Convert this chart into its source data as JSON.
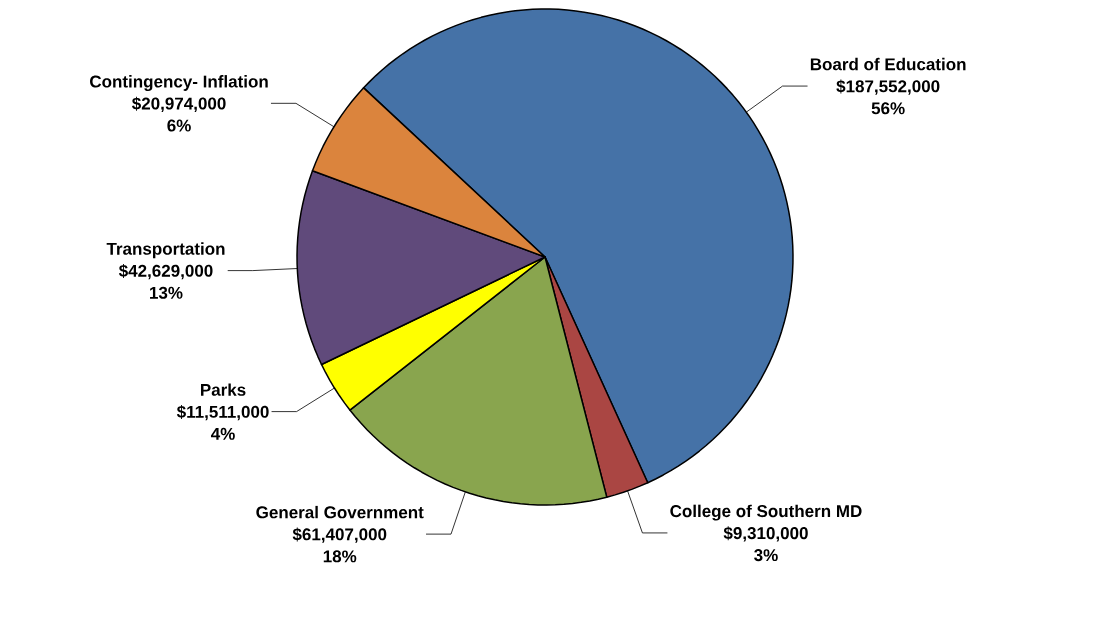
{
  "chart_data": {
    "type": "pie",
    "categories": [
      "Board of Education",
      "College of Southern MD",
      "General Government",
      "Parks",
      "Transportation",
      "Contingency- Inflation"
    ],
    "values": [
      187552000,
      9310000,
      61407000,
      11511000,
      42629000,
      20974000
    ],
    "value_labels": [
      "$187,552,000",
      "$9,310,000",
      "$61,407,000",
      "$11,511,000",
      "$42,629,000",
      "$20,974,000"
    ],
    "annotations": [
      "56%",
      "3%",
      "18%",
      "4%",
      "13%",
      "6%"
    ],
    "colors": [
      "#4572a7",
      "#aa4643",
      "#89a54e",
      "#ffff00",
      "#604a7b",
      "#db843d"
    ]
  }
}
